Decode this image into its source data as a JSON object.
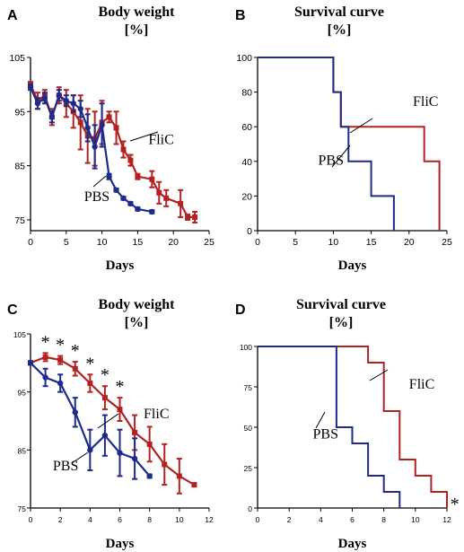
{
  "colors": {
    "fliC": "#b22222",
    "pbs": "#1c2b8c",
    "axis": "#000000"
  },
  "chart_data": [
    {
      "id": "A",
      "type": "line",
      "panel_label": "A",
      "title": "Body weight",
      "subtitle": "[%]",
      "xlabel": "Days",
      "ylabel": "",
      "xlim": [
        0,
        25
      ],
      "ylim": [
        73,
        105
      ],
      "xticks": [
        0,
        5,
        10,
        15,
        20,
        25
      ],
      "yticks": [
        75,
        85,
        95,
        105
      ],
      "series": [
        {
          "name": "FliC",
          "color": "#b22222",
          "marker": "square",
          "x": [
            0,
            1,
            2,
            3,
            4,
            5,
            6,
            7,
            8,
            9,
            10,
            11,
            12,
            13,
            14,
            15,
            17,
            18,
            19,
            21,
            22,
            23
          ],
          "values": [
            100,
            97,
            98,
            94,
            98,
            96.5,
            95,
            93,
            90.5,
            90,
            93,
            94,
            92,
            88,
            86,
            83,
            82.5,
            80,
            79,
            78,
            75.5,
            75.5
          ],
          "errors": [
            0.5,
            1.5,
            1,
            1.5,
            1.5,
            2.5,
            3,
            5,
            5,
            5,
            4,
            1,
            3,
            1.5,
            1,
            0.5,
            1.5,
            2,
            1.5,
            2.5,
            0.5,
            1
          ]
        },
        {
          "name": "PBS",
          "color": "#1c2b8c",
          "marker": "circle",
          "x": [
            0,
            1,
            2,
            3,
            4,
            5,
            6,
            7,
            8,
            9,
            10,
            11,
            12,
            13,
            14,
            15,
            17
          ],
          "values": [
            99.5,
            96.5,
            97.5,
            94,
            98,
            97,
            96.5,
            95.5,
            92,
            88.5,
            92.5,
            83,
            80.5,
            79,
            78,
            77,
            76.5
          ],
          "errors": [
            0.5,
            1,
            1,
            1,
            1,
            1,
            1.5,
            1.5,
            2.5,
            4,
            4,
            0.5,
            0.3,
            0.3,
            0.3,
            0.3,
            0.3
          ]
        }
      ],
      "annotations": [
        {
          "text": "FliC",
          "x": 16.5,
          "y": 89
        },
        {
          "text": "PBS",
          "x": 7.5,
          "y": 78.5
        }
      ]
    },
    {
      "id": "B",
      "type": "line",
      "step": true,
      "panel_label": "B",
      "title": "Survival curve",
      "subtitle": "[%]",
      "xlabel": "Days",
      "ylabel": "",
      "xlim": [
        0,
        25
      ],
      "ylim": [
        0,
        100
      ],
      "xticks": [
        0,
        5,
        10,
        15,
        20,
        25
      ],
      "yticks": [
        0,
        20,
        40,
        60,
        80,
        100
      ],
      "series": [
        {
          "name": "FliC",
          "color": "#b22222",
          "x": [
            0,
            10,
            10,
            11,
            11,
            22,
            22,
            24,
            24
          ],
          "values": [
            100,
            100,
            80,
            80,
            60,
            60,
            40,
            40,
            0
          ]
        },
        {
          "name": "PBS",
          "color": "#1c2b8c",
          "x": [
            0,
            10,
            10,
            11,
            11,
            12,
            12,
            15,
            15,
            18,
            18
          ],
          "values": [
            100,
            100,
            80,
            80,
            60,
            60,
            40,
            40,
            20,
            20,
            0
          ]
        }
      ],
      "annotations": [
        {
          "text": "FliC",
          "x": 20.5,
          "y": 72
        },
        {
          "text": "PBS",
          "x": 8,
          "y": 38
        }
      ]
    },
    {
      "id": "C",
      "type": "line",
      "panel_label": "C",
      "title": "Body weight",
      "subtitle": "[%]",
      "xlabel": "Days",
      "ylabel": "",
      "xlim": [
        0,
        12
      ],
      "ylim": [
        75,
        105
      ],
      "xticks": [
        0,
        2,
        4,
        6,
        8,
        10,
        12
      ],
      "yticks": [
        75,
        85,
        95,
        105
      ],
      "series": [
        {
          "name": "FliC",
          "color": "#b22222",
          "marker": "square",
          "x": [
            0,
            1,
            2,
            3,
            4,
            5,
            6,
            7,
            8,
            9,
            10,
            11
          ],
          "values": [
            100,
            101,
            100.5,
            99,
            96.5,
            94,
            92,
            88,
            86,
            82.5,
            80.5,
            79
          ],
          "errors": [
            0.3,
            0.7,
            0.7,
            1.2,
            1.5,
            2,
            2,
            3,
            3,
            3.5,
            3,
            0.3
          ]
        },
        {
          "name": "PBS",
          "color": "#1c2b8c",
          "marker": "circle",
          "x": [
            0,
            1,
            2,
            3,
            4,
            5,
            6,
            7,
            8
          ],
          "values": [
            100,
            97.5,
            96.5,
            91.5,
            85,
            87.5,
            84.5,
            83.5,
            80.5
          ],
          "errors": [
            0.3,
            1.5,
            1.5,
            2.5,
            3.5,
            3.5,
            4,
            3.5,
            0.3
          ]
        }
      ],
      "significance": {
        "text": "*",
        "x": [
          1,
          2,
          3,
          4,
          5,
          6
        ]
      },
      "annotations": [
        {
          "text": "FliC",
          "x": 7.6,
          "y": 90.5
        },
        {
          "text": "PBS",
          "x": 1.5,
          "y": 81.5
        }
      ]
    },
    {
      "id": "D",
      "type": "line",
      "step": true,
      "panel_label": "D",
      "title": "Survival curve",
      "subtitle": "[%]",
      "xlabel": "Days",
      "ylabel": "",
      "xlim": [
        0,
        12
      ],
      "ylim": [
        0,
        100
      ],
      "xticks": [
        0,
        2,
        4,
        6,
        8,
        10,
        12
      ],
      "yticks": [
        0,
        25,
        50,
        75,
        100
      ],
      "series": [
        {
          "name": "FliC",
          "color": "#b22222",
          "x": [
            0,
            7,
            7,
            8,
            8,
            9,
            9,
            10,
            10,
            11,
            11,
            12,
            12
          ],
          "values": [
            100,
            100,
            90,
            90,
            60,
            60,
            30,
            30,
            20,
            20,
            10,
            10,
            0
          ]
        },
        {
          "name": "PBS",
          "color": "#1c2b8c",
          "x": [
            0,
            5,
            5,
            6,
            6,
            7,
            7,
            8,
            8,
            9,
            9
          ],
          "values": [
            100,
            100,
            50,
            50,
            40,
            40,
            20,
            20,
            10,
            10,
            0
          ]
        }
      ],
      "significance": {
        "text": "*",
        "x": [
          12.5
        ]
      },
      "annotations": [
        {
          "text": "FliC",
          "x": 9.6,
          "y": 74
        },
        {
          "text": "PBS",
          "x": 3.5,
          "y": 43
        }
      ]
    }
  ]
}
